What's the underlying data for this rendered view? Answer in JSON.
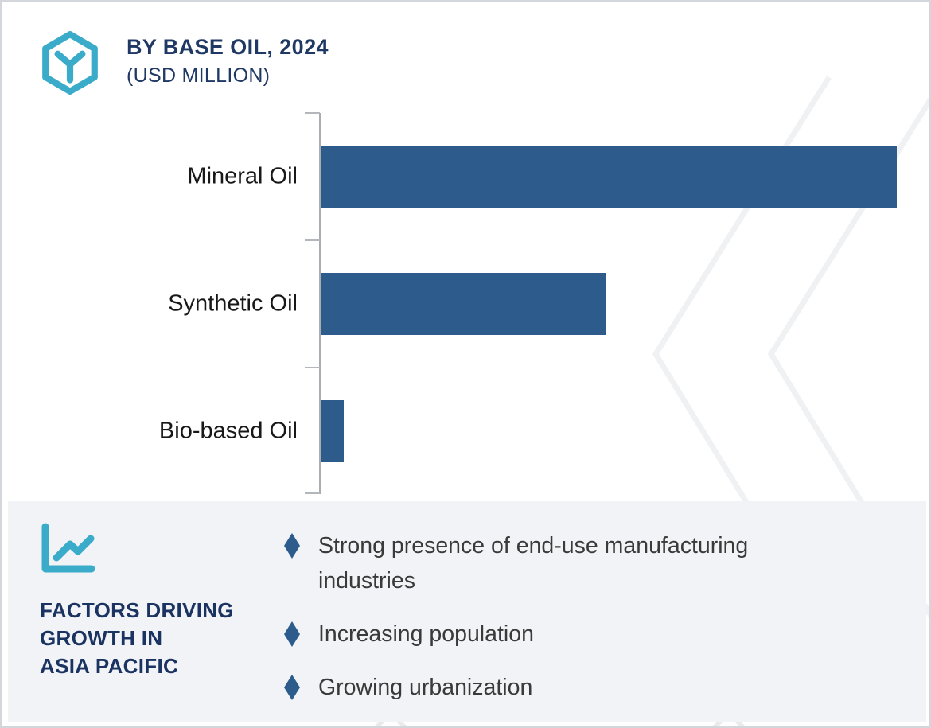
{
  "header": {
    "title": "BY BASE OIL, 2024",
    "subtitle": "(USD MILLION)",
    "logo_icon": "hexagon-y-logo"
  },
  "chart_data": {
    "type": "bar",
    "orientation": "horizontal",
    "title": "BY BASE OIL, 2024",
    "units_label": "USD MILLION",
    "categories": [
      "Mineral Oil",
      "Synthetic Oil",
      "Bio-based Oil"
    ],
    "values_pct_of_max": [
      100,
      49.5,
      3.9
    ],
    "value_labels_shown": false,
    "grid": false,
    "legend": false,
    "bar_color": "#2d5c8c",
    "axis_color": "#a9acb0"
  },
  "factors_panel": {
    "icon": "line-chart-icon",
    "heading_lines": [
      "FACTORS DRIVING",
      "GROWTH IN",
      "ASIA PACIFIC"
    ],
    "bullet_icon": "diamond-bullet",
    "bullets": [
      "Strong presence of end-use manufacturing industries",
      "Increasing population",
      "Growing urbanization"
    ],
    "panel_bg": "#f1f3f7"
  },
  "colors": {
    "bar_blue": "#2d5c8c",
    "navy": "#1f3864",
    "teal": "#3aabc9",
    "panel_bg": "#f1f3f7",
    "axis_gray": "#a9acb0",
    "watermark_gray": "#f0f1f3",
    "border_gray": "#d3d6da",
    "bullet_text": "#3a3a3a",
    "label_text": "#181818"
  }
}
